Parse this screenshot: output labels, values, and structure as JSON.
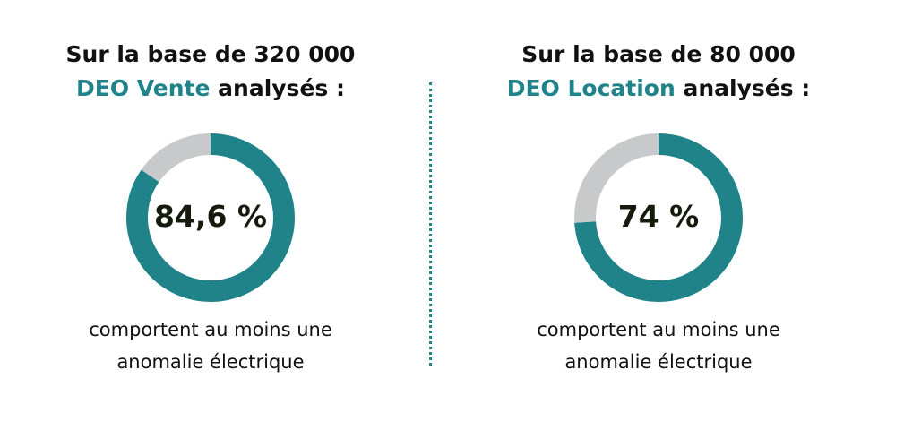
{
  "colors": {
    "accent": "#1f8389",
    "remainder": "#c8c9cb",
    "text": "#111111"
  },
  "chart_data": [
    {
      "type": "pie",
      "variant": "donut",
      "title_line1": "Sur la base de 320 000",
      "title_accent": "DEO Vente",
      "title_rest": "analysés :",
      "values": [
        84.6,
        15.4
      ],
      "center_label": "84,6 %",
      "caption_line1": "comportent au moins une",
      "caption_line2": "anomalie électrique"
    },
    {
      "type": "pie",
      "variant": "donut",
      "title_line1": "Sur la base de 80 000",
      "title_accent": "DEO Location",
      "title_rest": "analysés :",
      "values": [
        74,
        26
      ],
      "center_label": "74 %",
      "caption_line1": "comportent au moins une",
      "caption_line2": "anomalie électrique"
    }
  ]
}
